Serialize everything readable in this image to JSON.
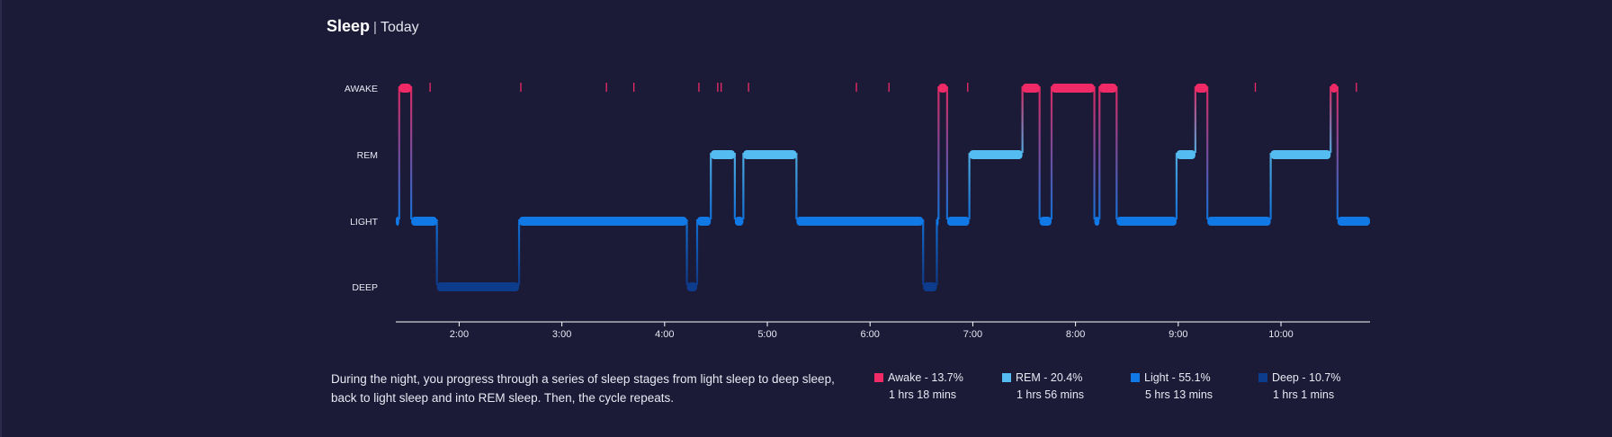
{
  "header": {
    "title": "Sleep",
    "separator": "|",
    "subtitle": "Today"
  },
  "colors": {
    "background": "#1b1a37",
    "awake": "#f02a66",
    "rem": "#55bcf2",
    "light": "#1179e6",
    "deep": "#0d3c8c",
    "axis": "#ffffff"
  },
  "chart_data": {
    "type": "step",
    "stages": [
      "AWAKE",
      "REM",
      "LIGHT",
      "DEEP"
    ],
    "x_ticks": [
      "2:00",
      "3:00",
      "4:00",
      "5:00",
      "6:00",
      "7:00",
      "8:00",
      "9:00",
      "10:00"
    ],
    "x_range": [
      "1:23",
      "10:52"
    ],
    "segments": [
      {
        "start": "1:23",
        "end": "1:25",
        "stage": "LIGHT"
      },
      {
        "start": "1:25",
        "end": "1:32",
        "stage": "AWAKE"
      },
      {
        "start": "1:32",
        "end": "1:47",
        "stage": "LIGHT"
      },
      {
        "start": "1:47",
        "end": "2:35",
        "stage": "DEEP"
      },
      {
        "start": "2:35",
        "end": "4:13",
        "stage": "LIGHT"
      },
      {
        "start": "4:13",
        "end": "4:19",
        "stage": "DEEP"
      },
      {
        "start": "4:19",
        "end": "4:27",
        "stage": "LIGHT"
      },
      {
        "start": "4:27",
        "end": "4:41",
        "stage": "REM"
      },
      {
        "start": "4:41",
        "end": "4:46",
        "stage": "LIGHT"
      },
      {
        "start": "4:46",
        "end": "5:17",
        "stage": "REM"
      },
      {
        "start": "5:17",
        "end": "6:31",
        "stage": "LIGHT"
      },
      {
        "start": "6:31",
        "end": "6:39",
        "stage": "DEEP"
      },
      {
        "start": "6:39",
        "end": "6:40",
        "stage": "LIGHT"
      },
      {
        "start": "6:40",
        "end": "6:45",
        "stage": "AWAKE"
      },
      {
        "start": "6:45",
        "end": "6:58",
        "stage": "LIGHT"
      },
      {
        "start": "6:58",
        "end": "7:29",
        "stage": "REM"
      },
      {
        "start": "7:29",
        "end": "7:39",
        "stage": "AWAKE"
      },
      {
        "start": "7:39",
        "end": "7:46",
        "stage": "LIGHT"
      },
      {
        "start": "7:46",
        "end": "8:11",
        "stage": "AWAKE"
      },
      {
        "start": "8:11",
        "end": "8:14",
        "stage": "LIGHT"
      },
      {
        "start": "8:14",
        "end": "8:24",
        "stage": "AWAKE"
      },
      {
        "start": "8:24",
        "end": "8:59",
        "stage": "LIGHT"
      },
      {
        "start": "8:59",
        "end": "9:10",
        "stage": "REM"
      },
      {
        "start": "9:10",
        "end": "9:17",
        "stage": "AWAKE"
      },
      {
        "start": "9:17",
        "end": "9:54",
        "stage": "LIGHT"
      },
      {
        "start": "9:54",
        "end": "10:29",
        "stage": "REM"
      },
      {
        "start": "10:29",
        "end": "10:33",
        "stage": "AWAKE"
      },
      {
        "start": "10:33",
        "end": "10:52",
        "stage": "LIGHT"
      }
    ],
    "brief_awakenings": [
      "1:43",
      "2:36",
      "3:26",
      "3:42",
      "4:20",
      "4:31",
      "4:33",
      "4:49",
      "5:52",
      "6:11",
      "6:57",
      "9:45",
      "10:44"
    ]
  },
  "description": "During the night, you progress through a series of sleep stages from light sleep to deep sleep, back to light sleep and into REM sleep. Then, the cycle repeats.",
  "legend": [
    {
      "key": "awake",
      "label": "Awake - 13.7%",
      "duration": "1 hrs 18 mins",
      "color": "#f02a66"
    },
    {
      "key": "rem",
      "label": "REM - 20.4%",
      "duration": "1 hrs 56 mins",
      "color": "#55bcf2"
    },
    {
      "key": "light",
      "label": "Light - 55.1%",
      "duration": "5 hrs 13 mins",
      "color": "#1179e6"
    },
    {
      "key": "deep",
      "label": "Deep - 10.7%",
      "duration": "1 hrs 1 mins",
      "color": "#0d3c8c"
    }
  ]
}
